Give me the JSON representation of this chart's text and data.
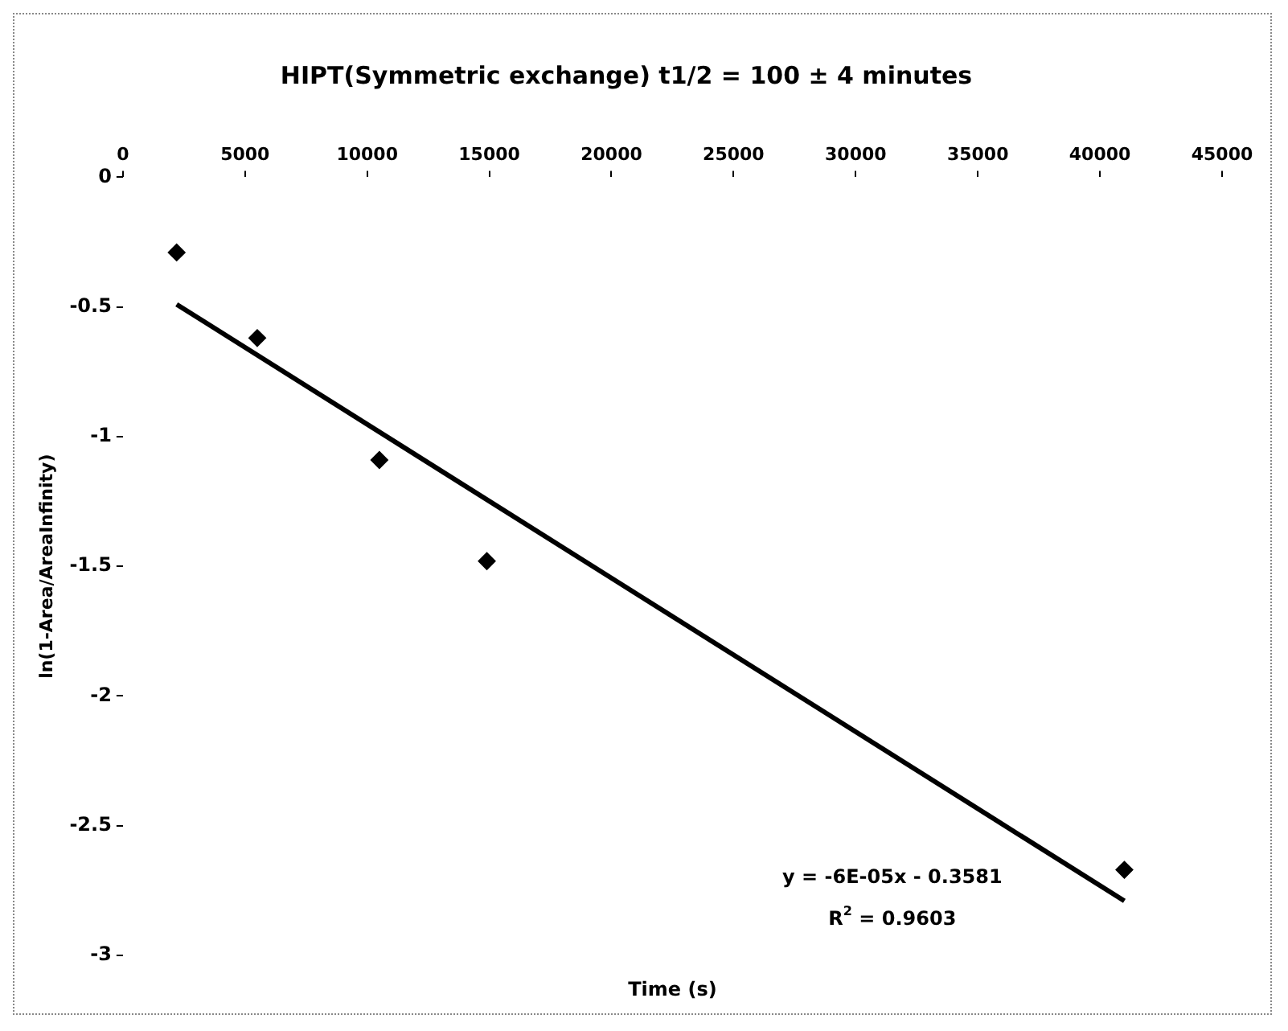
{
  "chart_data": {
    "type": "scatter",
    "title": "HIPT(Symmetric exchange) t1/2 = 100 ± 4 minutes",
    "xlabel": "Time (s)",
    "ylabel": "ln(1-Area/AreaInfinity)",
    "series": [
      {
        "color": "#000000",
        "x": [
          2200,
          5500,
          10500,
          14900,
          41000
        ],
        "values": [
          -0.29,
          -0.62,
          -1.09,
          -1.48,
          -2.67
        ]
      },
      {
        "type": "line",
        "marker": "none",
        "color": "#000000",
        "x": [
          2200,
          41000
        ],
        "values": [
          -0.49,
          -2.79
        ]
      }
    ],
    "marker": "diamond",
    "xlim": [
      0,
      45000
    ],
    "xticks": [
      0,
      5000,
      10000,
      15000,
      20000,
      25000,
      30000,
      35000,
      40000,
      45000
    ],
    "ylim": [
      -3,
      0
    ],
    "yticks": [
      0,
      -0.5,
      -1,
      -1.5,
      -2,
      -2.5,
      -3
    ],
    "grid": false,
    "legend": false,
    "annotations": [
      "y = -6E-05x - 0.3581",
      "R$^{2}$ = 0.9603"
    ]
  }
}
